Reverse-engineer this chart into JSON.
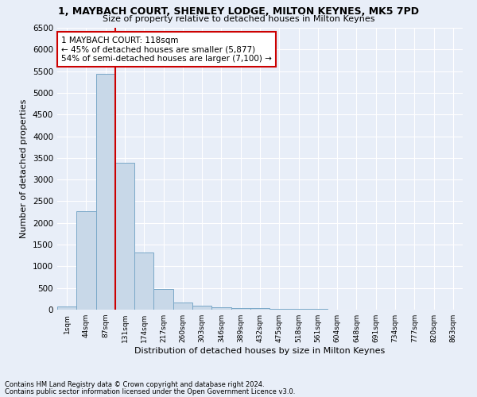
{
  "title": "1, MAYBACH COURT, SHENLEY LODGE, MILTON KEYNES, MK5 7PD",
  "subtitle": "Size of property relative to detached houses in Milton Keynes",
  "xlabel": "Distribution of detached houses by size in Milton Keynes",
  "ylabel": "Number of detached properties",
  "footnote1": "Contains HM Land Registry data © Crown copyright and database right 2024.",
  "footnote2": "Contains public sector information licensed under the Open Government Licence v3.0.",
  "bar_labels": [
    "1sqm",
    "44sqm",
    "87sqm",
    "131sqm",
    "174sqm",
    "217sqm",
    "260sqm",
    "303sqm",
    "346sqm",
    "389sqm",
    "432sqm",
    "475sqm",
    "518sqm",
    "561sqm",
    "604sqm",
    "648sqm",
    "691sqm",
    "734sqm",
    "777sqm",
    "820sqm",
    "863sqm"
  ],
  "bar_values": [
    70,
    2270,
    5430,
    3380,
    1310,
    480,
    165,
    90,
    60,
    40,
    30,
    20,
    15,
    10,
    8,
    5,
    4,
    3,
    2,
    2,
    1
  ],
  "bar_color": "#c8d8e8",
  "bar_edge_color": "#7aa8c8",
  "ylim": [
    0,
    6500
  ],
  "yticks": [
    0,
    500,
    1000,
    1500,
    2000,
    2500,
    3000,
    3500,
    4000,
    4500,
    5000,
    5500,
    6000,
    6500
  ],
  "annotation_line1": "1 MAYBACH COURT: 118sqm",
  "annotation_line2": "← 45% of detached houses are smaller (5,877)",
  "annotation_line3": "54% of semi-detached houses are larger (7,100) →",
  "vline_x_index": 2.5,
  "annotation_box_color": "#ffffff",
  "annotation_box_edge": "#cc0000",
  "vline_color": "#cc0000",
  "background_color": "#e8eef8",
  "grid_color": "#ffffff"
}
